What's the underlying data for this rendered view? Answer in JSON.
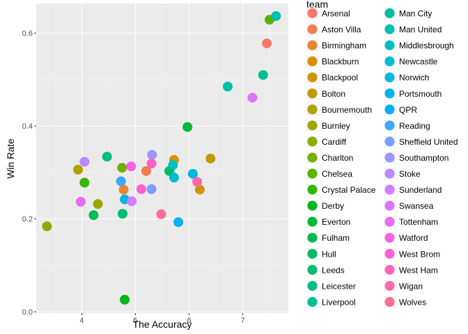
{
  "chart_data": {
    "type": "scatter",
    "xlabel": "The Accuracy",
    "ylabel": "Win Rate",
    "xlim": [
      3.15,
      7.85
    ],
    "ylim": [
      -0.003,
      0.664
    ],
    "x_ticks": [
      4,
      5,
      6,
      7
    ],
    "x_tick_labels": [
      "4",
      "5",
      "6",
      "7"
    ],
    "y_ticks": [
      0.0,
      0.2,
      0.4,
      0.6
    ],
    "y_tick_labels": [
      "0.0",
      "0.2",
      "0.4",
      "0.6"
    ],
    "grid": true,
    "legend": {
      "title": "team",
      "placement": "right",
      "columns": 2,
      "rows_per_column": 19
    },
    "series": [
      {
        "name": "Arsenal",
        "color": "#F8766D",
        "x": 7.45,
        "y": 0.578
      },
      {
        "name": "Aston Villa",
        "color": "#F07E4F",
        "x": 5.2,
        "y": 0.303
      },
      {
        "name": "Birmingham",
        "color": "#E6862E",
        "x": 4.78,
        "y": 0.263
      },
      {
        "name": "Blackburn",
        "color": "#DB8E00",
        "x": 5.72,
        "y": 0.327
      },
      {
        "name": "Blackpool",
        "color": "#CD9600",
        "x": 6.2,
        "y": 0.263
      },
      {
        "name": "Bolton",
        "color": "#BE9C00",
        "x": 6.4,
        "y": 0.33
      },
      {
        "name": "Bournemouth",
        "color": "#AEA200",
        "x": 3.93,
        "y": 0.306
      },
      {
        "name": "Burnley",
        "color": "#9CA700",
        "x": 4.3,
        "y": 0.232
      },
      {
        "name": "Cardiff",
        "color": "#89AC00",
        "x": 3.35,
        "y": 0.184
      },
      {
        "name": "Charlton",
        "color": "#74B000",
        "x": 4.75,
        "y": 0.31
      },
      {
        "name": "Chelsea",
        "color": "#5BB300",
        "x": 7.5,
        "y": 0.629
      },
      {
        "name": "Crystal Palace",
        "color": "#36B600",
        "x": 4.05,
        "y": 0.278
      },
      {
        "name": "Derby",
        "color": "#00B81A",
        "x": 4.8,
        "y": 0.026
      },
      {
        "name": "Everton",
        "color": "#00BA38",
        "x": 5.97,
        "y": 0.398
      },
      {
        "name": "Fulham",
        "color": "#00BB4E",
        "x": 4.22,
        "y": 0.208
      },
      {
        "name": "Hull",
        "color": "#00BC62",
        "x": 5.63,
        "y": 0.303
      },
      {
        "name": "Leeds",
        "color": "#00BD74",
        "x": 4.76,
        "y": 0.211
      },
      {
        "name": "Leicester",
        "color": "#00BE85",
        "x": 4.47,
        "y": 0.334
      },
      {
        "name": "Liverpool",
        "color": "#00BF95",
        "x": 7.38,
        "y": 0.51
      },
      {
        "name": "Man City",
        "color": "#00BFA5",
        "x": 6.72,
        "y": 0.485
      },
      {
        "name": "Man United",
        "color": "#00BFB4",
        "x": 7.62,
        "y": 0.637
      },
      {
        "name": "Middlesbrough",
        "color": "#00BEC2",
        "x": 5.7,
        "y": 0.316
      },
      {
        "name": "Newcastle",
        "color": "#00BCD0",
        "x": 5.72,
        "y": 0.289
      },
      {
        "name": "Norwich",
        "color": "#00B9DC",
        "x": 6.07,
        "y": 0.297
      },
      {
        "name": "Portsmouth",
        "color": "#00B5E8",
        "x": 4.8,
        "y": 0.242
      },
      {
        "name": "QPR",
        "color": "#00B0F2",
        "x": 5.8,
        "y": 0.193
      },
      {
        "name": "Reading",
        "color": "#3EA8FB",
        "x": 4.73,
        "y": 0.281
      },
      {
        "name": "Sheffield United",
        "color": "#7A9FFF",
        "x": 5.3,
        "y": 0.264
      },
      {
        "name": "Southampton",
        "color": "#9E95FF",
        "x": 5.31,
        "y": 0.338
      },
      {
        "name": "Stoke",
        "color": "#B88AFF",
        "x": 4.05,
        "y": 0.323
      },
      {
        "name": "Sunderland",
        "color": "#CD7FFF",
        "x": 4.93,
        "y": 0.238
      },
      {
        "name": "Swansea",
        "color": "#DD74FB",
        "x": 7.18,
        "y": 0.461
      },
      {
        "name": "Tottenham",
        "color": "#EA6AF1",
        "x": 3.98,
        "y": 0.237
      },
      {
        "name": "Watford",
        "color": "#F563E3",
        "x": 4.92,
        "y": 0.313
      },
      {
        "name": "West Brom",
        "color": "#FC61D3",
        "x": 5.11,
        "y": 0.264
      },
      {
        "name": "West Ham",
        "color": "#FF62C1",
        "x": 5.3,
        "y": 0.319
      },
      {
        "name": "Wigan",
        "color": "#FF66AD",
        "x": 6.15,
        "y": 0.28
      },
      {
        "name": "Wolves",
        "color": "#FF6C97",
        "x": 5.48,
        "y": 0.21
      }
    ]
  }
}
